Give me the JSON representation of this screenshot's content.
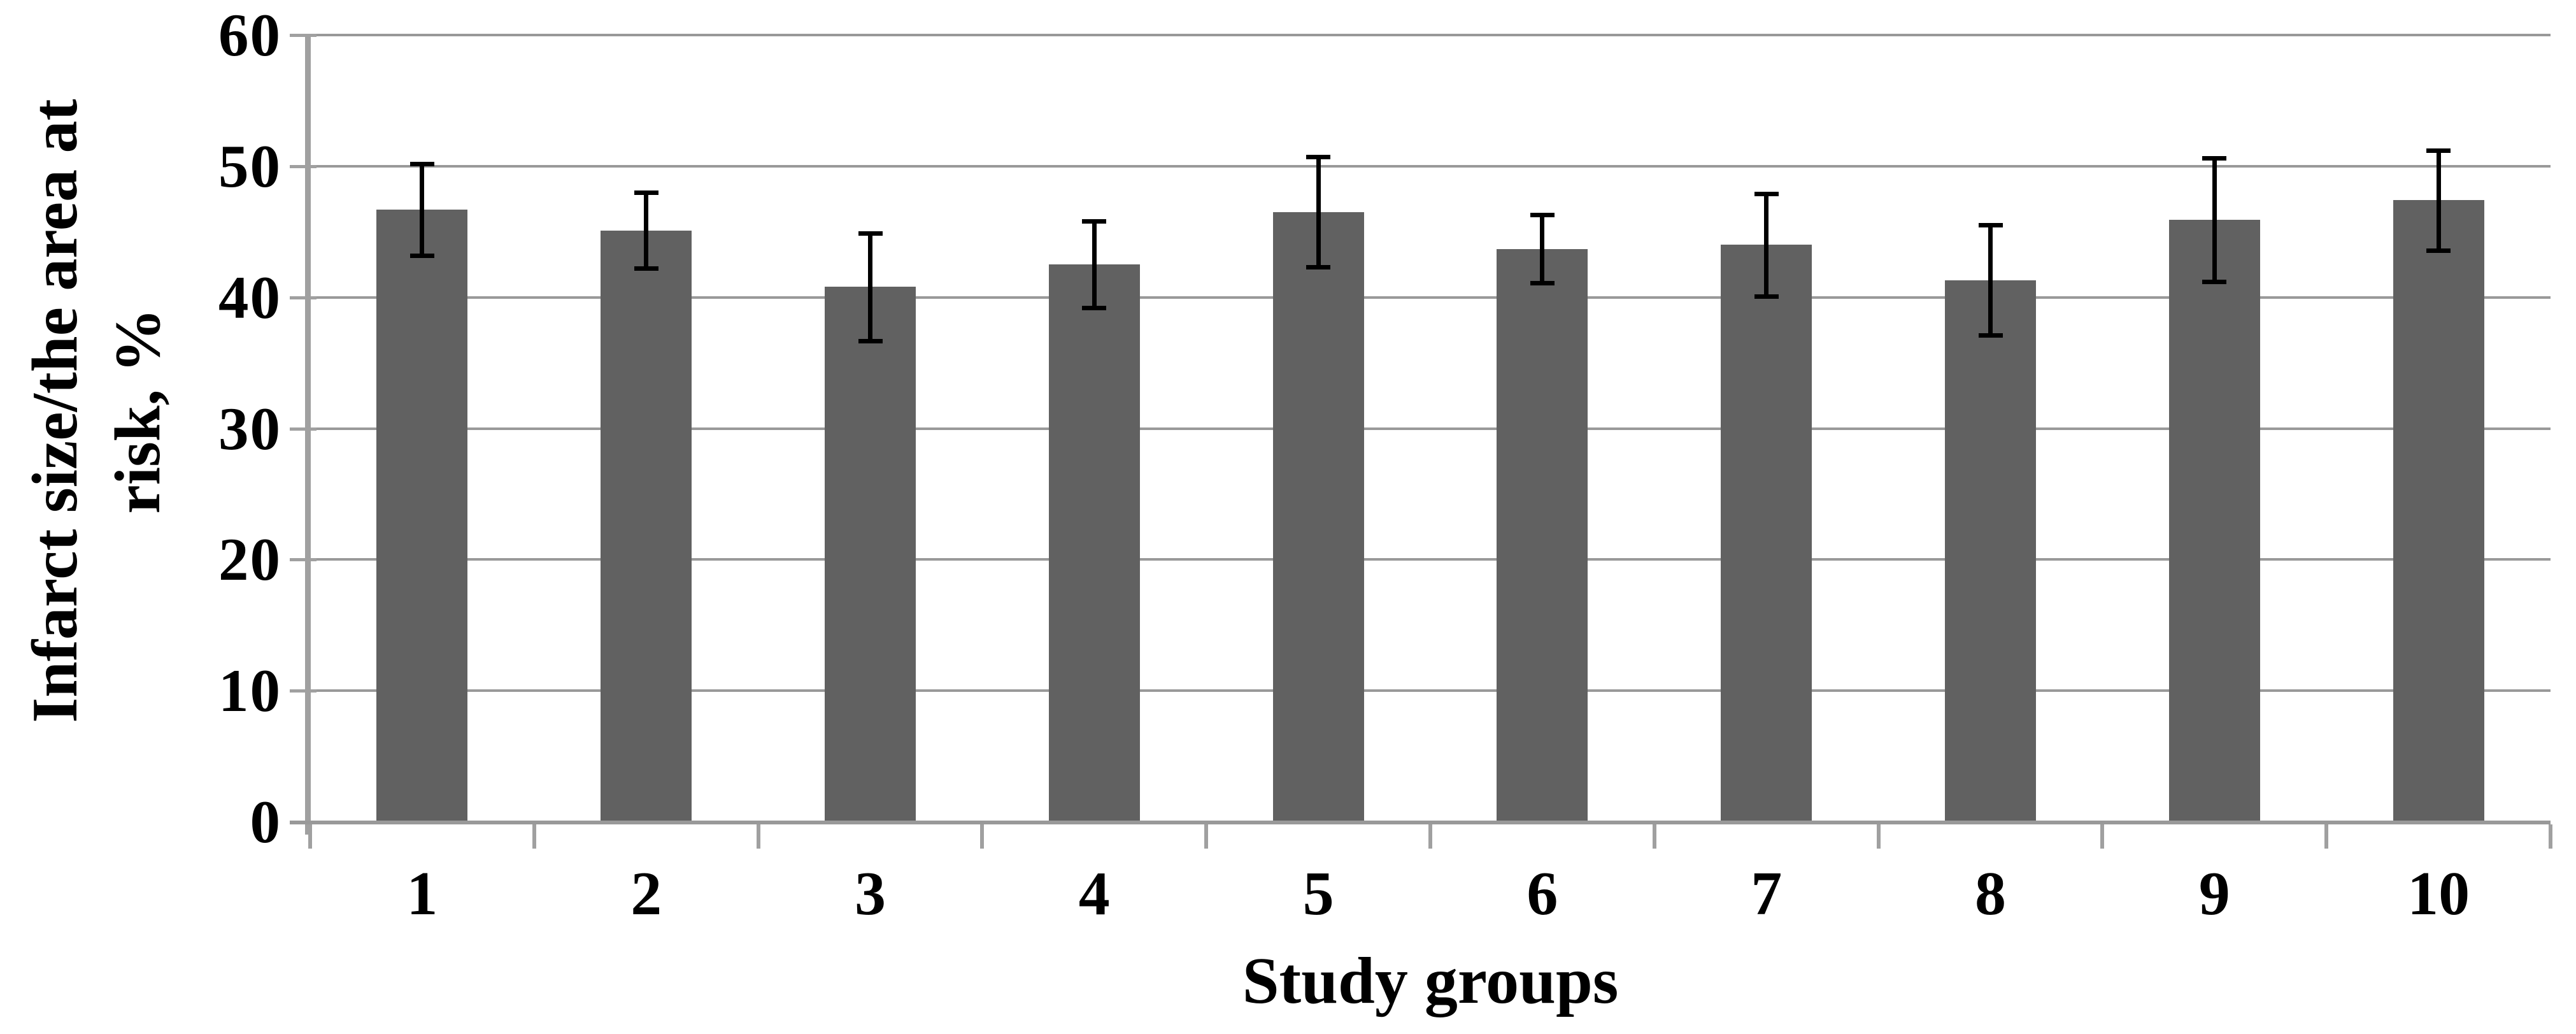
{
  "chart_data": {
    "type": "bar",
    "title": "",
    "xlabel": "Study groups",
    "ylabel": "Infarct size/the area at risk, %",
    "ylabel_lines": [
      "Infarct size/the area at",
      "risk, %"
    ],
    "categories": [
      "1",
      "2",
      "3",
      "4",
      "5",
      "6",
      "7",
      "8",
      "9",
      "10"
    ],
    "series": [
      {
        "name": "Infarct size/the area at risk",
        "values": [
          46.7,
          45.1,
          40.8,
          42.5,
          46.5,
          43.7,
          44.0,
          41.3,
          45.9,
          47.4
        ],
        "errors": [
          3.5,
          2.9,
          4.1,
          3.3,
          4.2,
          2.6,
          3.9,
          4.2,
          4.7,
          3.8
        ]
      }
    ],
    "ylim": [
      0,
      60
    ],
    "ytick_step": 10,
    "yticks": [
      "0",
      "10",
      "20",
      "30",
      "40",
      "50",
      "60"
    ],
    "grid": true,
    "legend_position": "none",
    "error_bars": true,
    "colors": {
      "bar": "#616161",
      "gridline": "#999999",
      "axis": "#a0a0a0",
      "error_bar": "#000000",
      "text": "#000000",
      "background": "#ffffff"
    }
  }
}
